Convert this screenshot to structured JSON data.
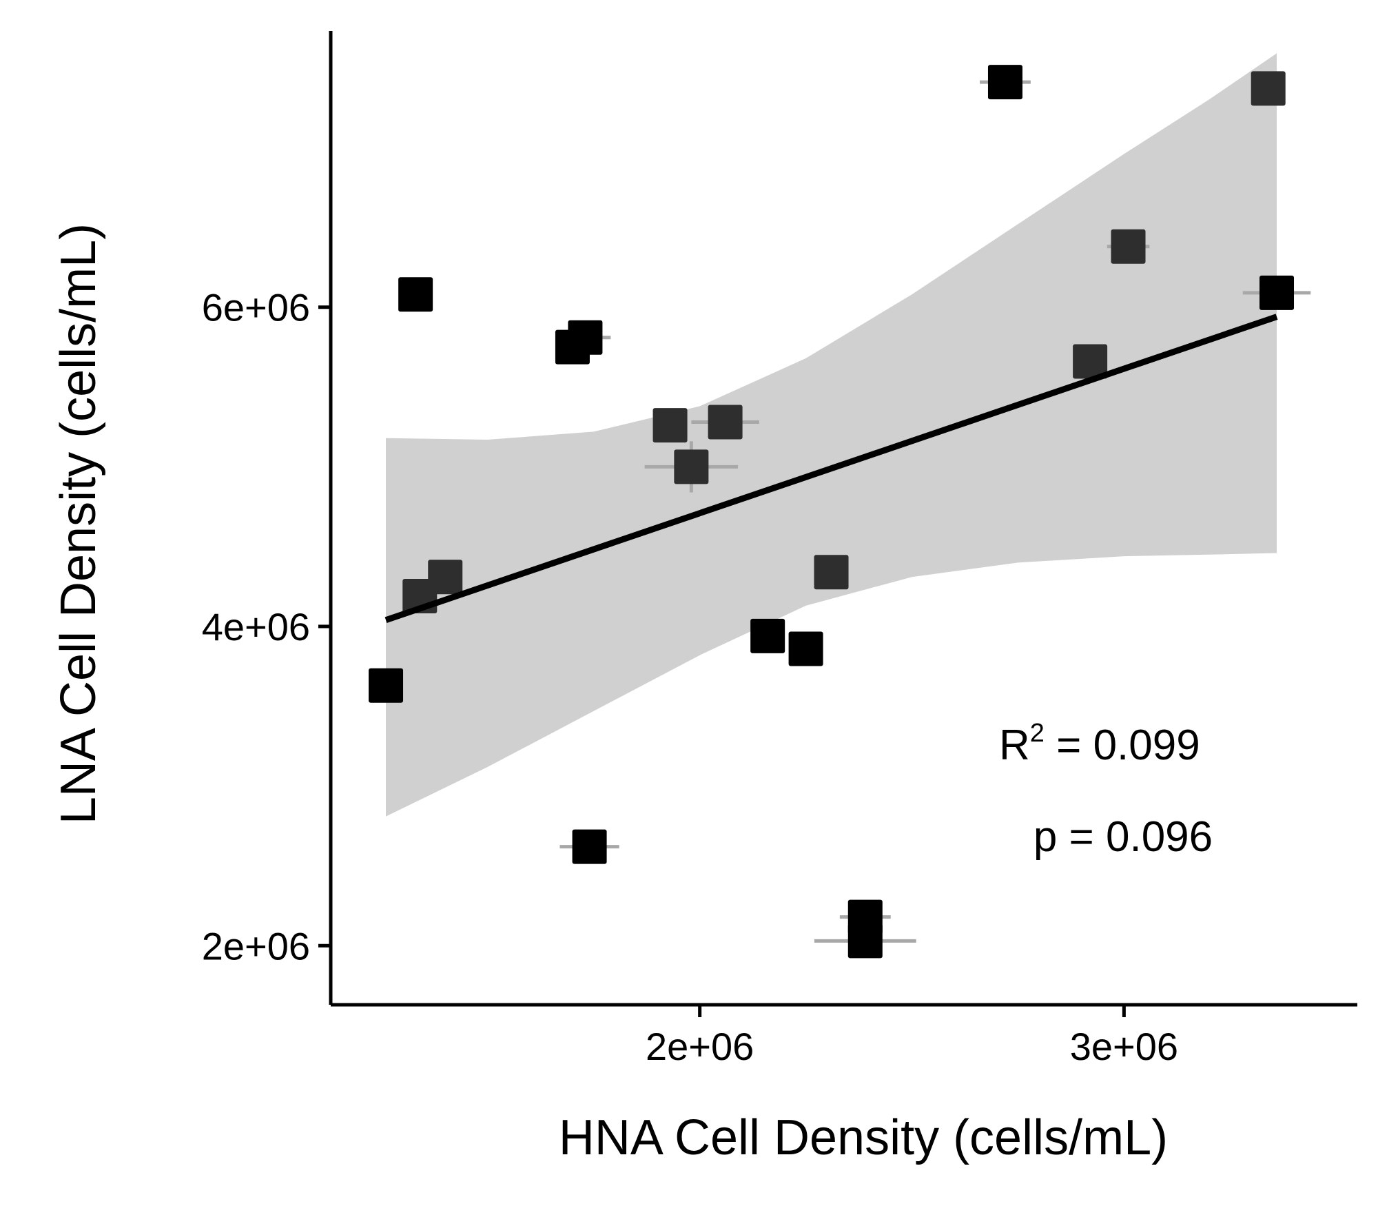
{
  "chart_data": {
    "type": "scatter",
    "title": "",
    "xlabel": "HNA Cell Density (cells/mL)",
    "ylabel": "LNA Cell Density (cells/mL)",
    "xlim": [
      1130000,
      3550000
    ],
    "ylim": [
      1630000,
      7730000
    ],
    "xticks": [
      {
        "value": 2000000,
        "label": "2e+06"
      },
      {
        "value": 3000000,
        "label": "3e+06"
      }
    ],
    "yticks": [
      {
        "value": 2000000,
        "label": "2e+06"
      },
      {
        "value": 4000000,
        "label": "4e+06"
      },
      {
        "value": 6000000,
        "label": "6e+06"
      }
    ],
    "grid": false,
    "legend": "none",
    "colors": {
      "point": "#000000",
      "point_alt": "#2e2e2e",
      "errorbar": "#a8a8a8",
      "ribbon": "#d0d0d0",
      "fit_line": "#000000",
      "axis": "#000000"
    },
    "points": [
      {
        "x": 1260000,
        "y": 3630000,
        "xerr": 0,
        "yerr": 0,
        "shade": "dark"
      },
      {
        "x": 1340000,
        "y": 4190000,
        "xerr": 20000,
        "yerr": 0,
        "shade": "alt"
      },
      {
        "x": 1400000,
        "y": 4310000,
        "xerr": 0,
        "yerr": 0,
        "shade": "alt"
      },
      {
        "x": 1330000,
        "y": 6080000,
        "xerr": 40000,
        "yerr": 0,
        "shade": "dark"
      },
      {
        "x": 1700000,
        "y": 5750000,
        "xerr": 0,
        "yerr": 60000,
        "shade": "dark"
      },
      {
        "x": 1730000,
        "y": 5810000,
        "xerr": 60000,
        "yerr": 0,
        "shade": "dark"
      },
      {
        "x": 1740000,
        "y": 2620000,
        "xerr": 70000,
        "yerr": 0,
        "shade": "dark"
      },
      {
        "x": 1930000,
        "y": 5260000,
        "xerr": 40000,
        "yerr": 0,
        "shade": "alt"
      },
      {
        "x": 1980000,
        "y": 5000000,
        "xerr": 110000,
        "yerr": 160000,
        "shade": "alt"
      },
      {
        "x": 2060000,
        "y": 5280000,
        "xerr": 80000,
        "yerr": 0,
        "shade": "alt"
      },
      {
        "x": 2160000,
        "y": 3940000,
        "xerr": 40000,
        "yerr": 0,
        "shade": "dark"
      },
      {
        "x": 2250000,
        "y": 3860000,
        "xerr": 40000,
        "yerr": 0,
        "shade": "dark"
      },
      {
        "x": 2310000,
        "y": 4340000,
        "xerr": 40000,
        "yerr": 0,
        "shade": "alt"
      },
      {
        "x": 2390000,
        "y": 2180000,
        "xerr": 60000,
        "yerr": 0,
        "shade": "dark"
      },
      {
        "x": 2390000,
        "y": 2030000,
        "xerr": 120000,
        "yerr": 0,
        "shade": "dark"
      },
      {
        "x": 2720000,
        "y": 7410000,
        "xerr": 60000,
        "yerr": 0,
        "shade": "dark"
      },
      {
        "x": 2920000,
        "y": 5660000,
        "xerr": 0,
        "yerr": 0,
        "shade": "alt"
      },
      {
        "x": 3010000,
        "y": 6380000,
        "xerr": 50000,
        "yerr": 0,
        "shade": "alt"
      },
      {
        "x": 3340000,
        "y": 7370000,
        "xerr": 0,
        "yerr": 0,
        "shade": "alt"
      },
      {
        "x": 3360000,
        "y": 6090000,
        "xerr": 80000,
        "yerr": 0,
        "shade": "dark"
      }
    ],
    "fit": {
      "x": [
        1260000,
        3360000
      ],
      "y": [
        4040000,
        5940000
      ]
    },
    "confidence_band": {
      "x": [
        1260000,
        1500000,
        1750000,
        2000000,
        2250000,
        2500000,
        2750000,
        3000000,
        3200000,
        3360000
      ],
      "upper": [
        5180000,
        5170000,
        5220000,
        5380000,
        5680000,
        6080000,
        6520000,
        6960000,
        7300000,
        7590000
      ],
      "lower": [
        2810000,
        3120000,
        3470000,
        3820000,
        4130000,
        4310000,
        4400000,
        4440000,
        4450000,
        4460000
      ]
    },
    "annotations": {
      "r2_label": "R",
      "r2_sup": "2",
      "r2_value": " = 0.099",
      "p_text": "p = 0.096"
    }
  }
}
